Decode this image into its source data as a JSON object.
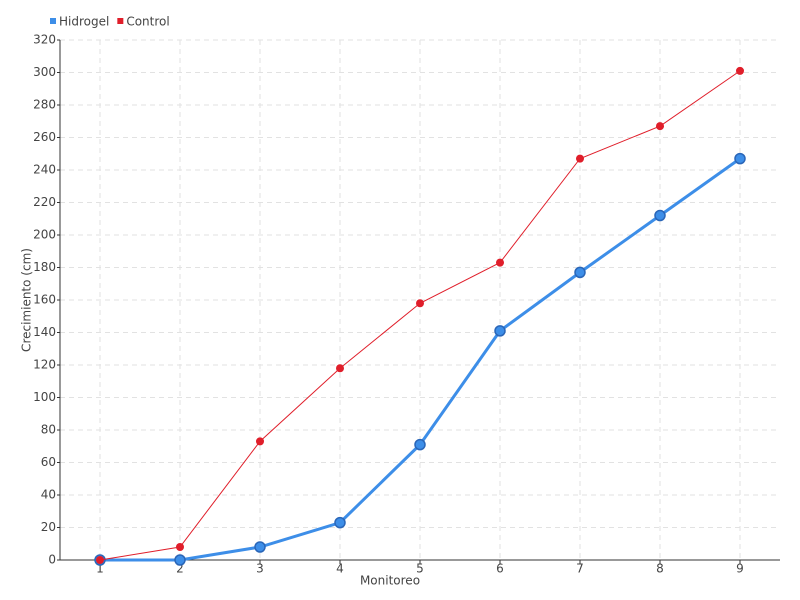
{
  "chart_data": {
    "type": "line",
    "x_label": "Monitoreo",
    "y_label": "Crecimiento (cm)",
    "categories": [
      "1",
      "2",
      "3",
      "4",
      "5",
      "6",
      "7",
      "8",
      "9"
    ],
    "series": [
      {
        "name": "Hidrogel",
        "color": "#3d8ee8",
        "values": [
          0,
          0,
          8,
          23,
          71,
          141,
          177,
          212,
          247
        ]
      },
      {
        "name": "Control",
        "color": "#e01e2a",
        "values": [
          0,
          8,
          73,
          118,
          158,
          183,
          247,
          267,
          301
        ]
      }
    ],
    "ylim": [
      0,
      320
    ],
    "yticks": [
      0,
      20,
      40,
      60,
      80,
      100,
      120,
      140,
      160,
      180,
      200,
      220,
      240,
      260,
      280,
      300,
      320
    ],
    "grid": true,
    "legend": "top-left"
  }
}
